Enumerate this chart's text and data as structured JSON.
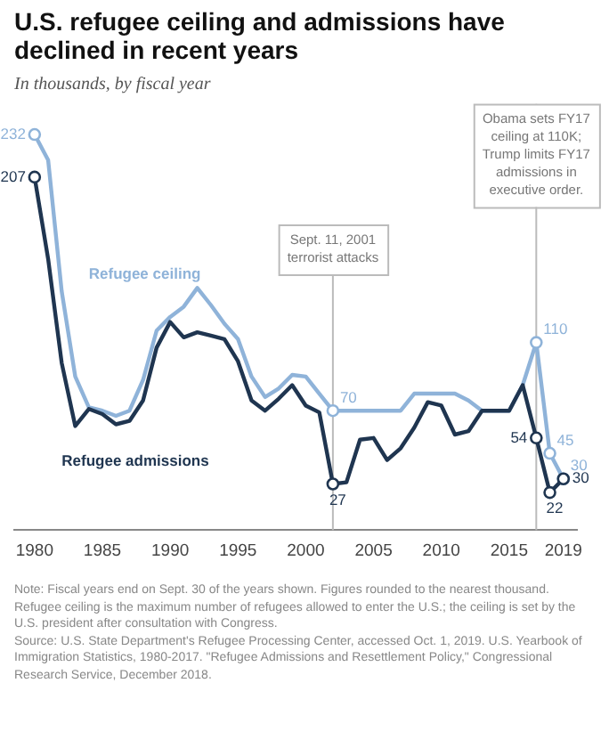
{
  "chart_data": {
    "type": "line",
    "title": "U.S. refugee ceiling and admissions have declined in recent years",
    "subtitle": "In thousands, by fiscal year",
    "x": [
      1980,
      1981,
      1982,
      1983,
      1984,
      1985,
      1986,
      1987,
      1988,
      1989,
      1990,
      1991,
      1992,
      1993,
      1994,
      1995,
      1996,
      1997,
      1998,
      1999,
      2000,
      2001,
      2002,
      2003,
      2004,
      2005,
      2006,
      2007,
      2008,
      2009,
      2010,
      2011,
      2012,
      2013,
      2014,
      2015,
      2016,
      2017,
      2018,
      2019
    ],
    "series": [
      {
        "name": "Refugee ceiling",
        "color": "#8fb3d9",
        "values": [
          232,
          217,
          140,
          90,
          72,
          70,
          67,
          70,
          88,
          117,
          125,
          131,
          142,
          132,
          121,
          112,
          90,
          78,
          83,
          91,
          90,
          80,
          70,
          70,
          70,
          70,
          70,
          70,
          80,
          80,
          80,
          80,
          76,
          70,
          70,
          70,
          85,
          110,
          45,
          30
        ],
        "value_labels": [
          "232",
          null,
          null,
          null,
          null,
          null,
          null,
          null,
          null,
          null,
          null,
          null,
          null,
          null,
          null,
          null,
          null,
          null,
          null,
          null,
          null,
          null,
          "70",
          null,
          null,
          null,
          null,
          null,
          null,
          null,
          null,
          null,
          null,
          null,
          null,
          null,
          null,
          "110",
          "45",
          "30"
        ]
      },
      {
        "name": "Refugee admissions",
        "color": "#1f3550",
        "values": [
          207,
          159,
          98,
          61,
          71,
          68,
          62,
          64,
          76,
          107,
          122,
          113,
          116,
          114,
          112,
          99,
          76,
          70,
          77,
          85,
          73,
          69,
          27,
          28,
          53,
          54,
          41,
          48,
          60,
          75,
          73,
          56,
          58,
          70,
          70,
          70,
          85,
          54,
          22,
          30
        ],
        "value_labels": [
          "207",
          null,
          null,
          null,
          null,
          null,
          null,
          null,
          null,
          null,
          null,
          null,
          null,
          null,
          null,
          null,
          null,
          null,
          null,
          null,
          null,
          null,
          "27",
          null,
          null,
          null,
          null,
          null,
          null,
          null,
          null,
          null,
          null,
          null,
          null,
          null,
          null,
          "54",
          "22",
          "30"
        ]
      }
    ],
    "xlim": [
      1978.5,
      2020
    ],
    "xticks": [
      1980,
      1985,
      1990,
      1995,
      2000,
      2005,
      2010,
      2015,
      2019
    ],
    "tick_labels": "x",
    "grid": false,
    "legend": false,
    "ref_lines": [
      {
        "axis": "x",
        "value": 2002,
        "label": "Sept. 11, 2001 terrorist attacks",
        "color": "#bbbbbb"
      },
      {
        "axis": "x",
        "value": 2017,
        "label": "Obama sets FY17 ceiling at 110K; Trump limits FY17 admissions in executive order.",
        "color": "#bbbbbb"
      }
    ],
    "annotations": [
      "Note: Fiscal years end on Sept. 30 of the years shown. Figures rounded to the nearest thousand. Refugee ceiling is the maximum number of refugees allowed to enter the U.S.; the ceiling is set by the U.S. president after consultation with Congress.",
      "Source: U.S. State Department's Refugee Processing Center, accessed Oct. 1, 2019. U.S. Yearbook of Immigration Statistics, 1980-2017. \"Refugee Admissions and Resettlement Policy,\" Congressional Research Service, December 2018."
    ]
  }
}
